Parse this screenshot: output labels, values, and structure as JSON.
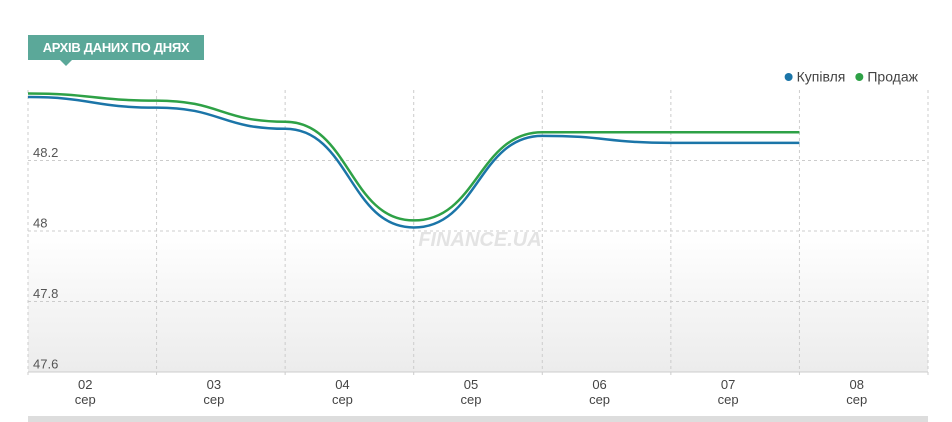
{
  "chart_data": {
    "type": "line",
    "header": "АРХІВ ДАНИХ ПО ДНЯХ",
    "watermark": "FINANCE.UA",
    "categories": [
      "02 сер",
      "03 сер",
      "04 сер",
      "05 сер",
      "06 сер",
      "07 сер",
      "08 сер"
    ],
    "series": [
      {
        "name": "Купівля",
        "color": "#1b75a8",
        "values": [
          48.38,
          48.35,
          48.29,
          48.01,
          48.27,
          48.25,
          48.25
        ]
      },
      {
        "name": "Продаж",
        "color": "#2ea146",
        "values": [
          48.39,
          48.37,
          48.31,
          48.03,
          48.28,
          48.28,
          48.28
        ]
      }
    ],
    "ylim": [
      47.6,
      48.4
    ],
    "yticks": [
      47.6,
      47.8,
      48.0,
      48.2
    ],
    "grid": true,
    "legend": "top-right"
  }
}
